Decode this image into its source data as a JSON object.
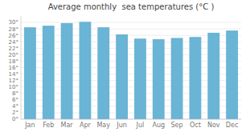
{
  "chart_data": {
    "type": "bar",
    "title": "Average monthly  sea temperatures (°C )",
    "categories": [
      "Jan",
      "Feb",
      "Mar",
      "Apr",
      "May",
      "Jun",
      "Jul",
      "Aug",
      "Sep",
      "Oct",
      "Nov",
      "Dec"
    ],
    "values": [
      28.5,
      29.0,
      29.8,
      30.2,
      28.5,
      26.3,
      25.0,
      24.8,
      25.2,
      25.5,
      26.8,
      27.5
    ],
    "color": "#6ab4d5",
    "ylim": [
      0,
      32
    ],
    "yticks": [
      {
        "value": 0,
        "label": "0°"
      },
      {
        "value": 2,
        "label": "2°"
      },
      {
        "value": 4,
        "label": "4°"
      },
      {
        "value": 6,
        "label": "6°"
      },
      {
        "value": 8,
        "label": "8°"
      },
      {
        "value": 10,
        "label": "10°"
      },
      {
        "value": 12,
        "label": "12°"
      },
      {
        "value": 14,
        "label": "14°"
      },
      {
        "value": 16,
        "label": "16°"
      },
      {
        "value": 18,
        "label": "18°"
      },
      {
        "value": 20,
        "label": "20°"
      },
      {
        "value": 22,
        "label": "22°"
      },
      {
        "value": 24,
        "label": "24°"
      },
      {
        "value": 26,
        "label": "26°"
      },
      {
        "value": 28,
        "label": "28°"
      },
      {
        "value": 30,
        "label": "30°"
      }
    ],
    "grid": true
  }
}
